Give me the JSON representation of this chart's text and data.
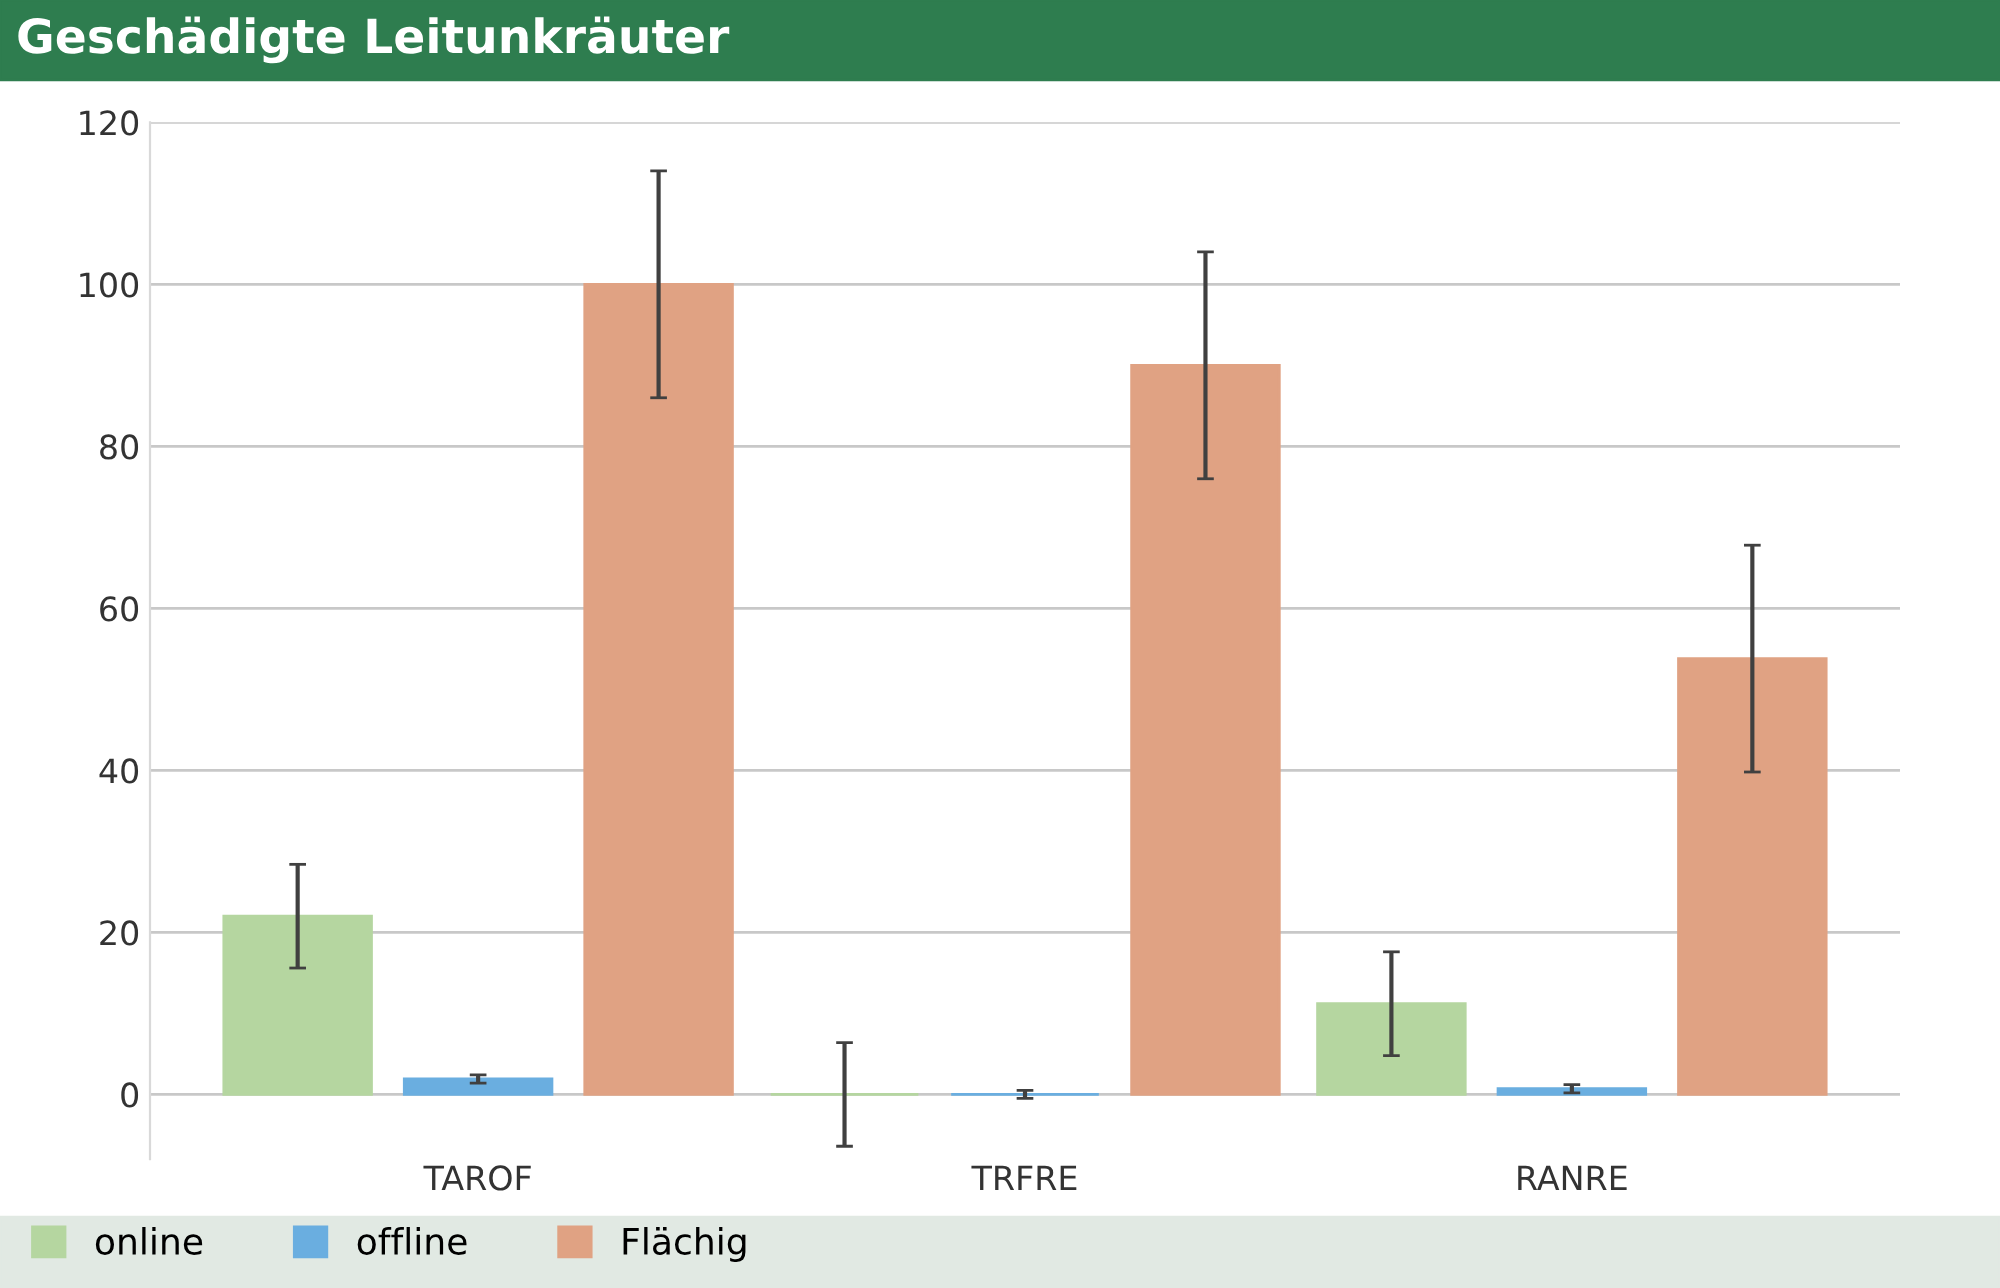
{
  "chart_data": {
    "type": "bar",
    "title": "Geschädigte Leitunkräuter",
    "categories": [
      "TAROF",
      "TRFRE",
      "RANRE"
    ],
    "series": [
      {
        "name": "online",
        "color": "#b5d6a0",
        "values": [
          22.0,
          0,
          11.2
        ],
        "errors": [
          6.4,
          6.4,
          6.4
        ]
      },
      {
        "name": "offline",
        "color": "#6aaee0",
        "values": [
          1.9,
          0,
          0.7
        ],
        "errors": [
          0.5,
          0.5,
          0.5
        ]
      },
      {
        "name": "Flächig",
        "color": "#e0a283",
        "values": [
          100,
          90,
          53.8
        ],
        "errors": [
          14,
          14,
          14
        ]
      }
    ],
    "ylim": [
      -8,
      120
    ],
    "yticks": [
      0,
      20,
      40,
      60,
      80,
      100,
      120
    ],
    "grid": "y",
    "legend": "bottom"
  }
}
